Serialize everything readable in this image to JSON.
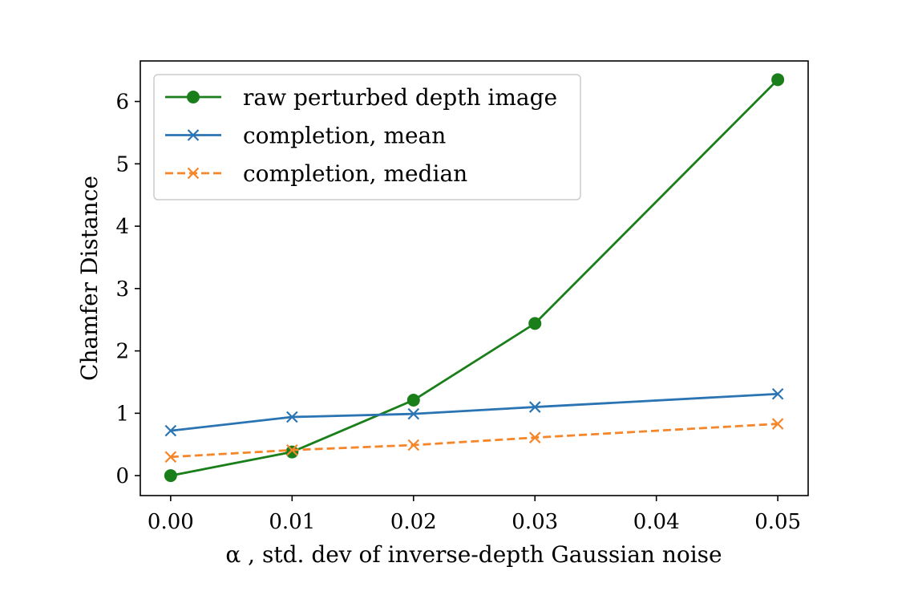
{
  "chart_data": {
    "type": "line",
    "title": "",
    "xlabel": "α , std. dev of inverse-depth Gaussian noise",
    "ylabel": "Chamfer Distance",
    "xlim": [
      -0.0025,
      0.0525
    ],
    "ylim": [
      -0.32,
      6.65
    ],
    "xticks": [
      0.0,
      0.01,
      0.02,
      0.03,
      0.04,
      0.05
    ],
    "xtick_labels": [
      "0.00",
      "0.01",
      "0.02",
      "0.03",
      "0.04",
      "0.05"
    ],
    "yticks": [
      0,
      1,
      2,
      3,
      4,
      5,
      6
    ],
    "ytick_labels": [
      "0",
      "1",
      "2",
      "3",
      "4",
      "5",
      "6"
    ],
    "grid": false,
    "legend_position": "upper-left",
    "series": [
      {
        "name": "raw perturbed depth image",
        "x": [
          0.0,
          0.01,
          0.02,
          0.03,
          0.05
        ],
        "y": [
          0.0,
          0.38,
          1.21,
          2.44,
          6.35
        ],
        "color": "#1a7f1a",
        "marker": "circle",
        "linestyle": "solid"
      },
      {
        "name": "completion, mean",
        "x": [
          0.0,
          0.01,
          0.02,
          0.03,
          0.05
        ],
        "y": [
          0.72,
          0.94,
          0.99,
          1.1,
          1.31
        ],
        "color": "#2b74b3",
        "marker": "x",
        "linestyle": "solid"
      },
      {
        "name": "completion, median",
        "x": [
          0.0,
          0.01,
          0.02,
          0.03,
          0.05
        ],
        "y": [
          0.3,
          0.41,
          0.49,
          0.61,
          0.83
        ],
        "color": "#f5862a",
        "marker": "x",
        "linestyle": "dashed"
      }
    ]
  }
}
